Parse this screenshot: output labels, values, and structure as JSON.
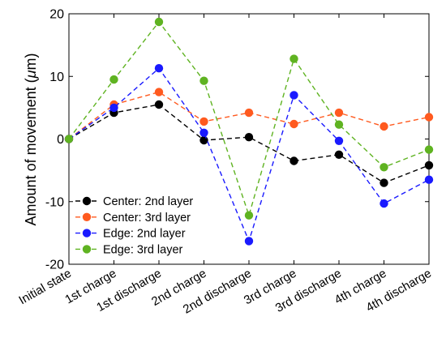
{
  "chart_data": {
    "type": "line",
    "categories": [
      "Initial state",
      "1st charge",
      "1st discharge",
      "2nd charge",
      "2nd discharge",
      "3rd charge",
      "3rd discharge",
      "4th charge",
      "4th discharge"
    ],
    "ylabel": "Amount of movement (μm)",
    "ylim": [
      -20,
      20
    ],
    "yticks": [
      -20,
      -10,
      0,
      10,
      20
    ],
    "legend_position": "lower-left",
    "grid": false,
    "series": [
      {
        "name": "Center: 2nd layer",
        "color": "#000000",
        "values": [
          0,
          4.2,
          5.5,
          -0.2,
          0.3,
          -3.5,
          -2.5,
          -7.0,
          -4.2
        ]
      },
      {
        "name": "Center: 3rd layer",
        "color": "#ff5a1f",
        "values": [
          0,
          5.5,
          7.5,
          2.8,
          4.2,
          2.4,
          4.2,
          2.0,
          3.5
        ]
      },
      {
        "name": "Edge: 2nd layer",
        "color": "#1a1aff",
        "values": [
          0,
          5.0,
          11.3,
          1.0,
          -16.3,
          7.0,
          -0.3,
          -10.3,
          -6.5
        ]
      },
      {
        "name": "Edge: 3rd layer",
        "color": "#5fb321",
        "values": [
          0,
          9.5,
          18.7,
          9.3,
          -12.2,
          12.8,
          2.3,
          -4.5,
          -1.7
        ]
      }
    ]
  }
}
